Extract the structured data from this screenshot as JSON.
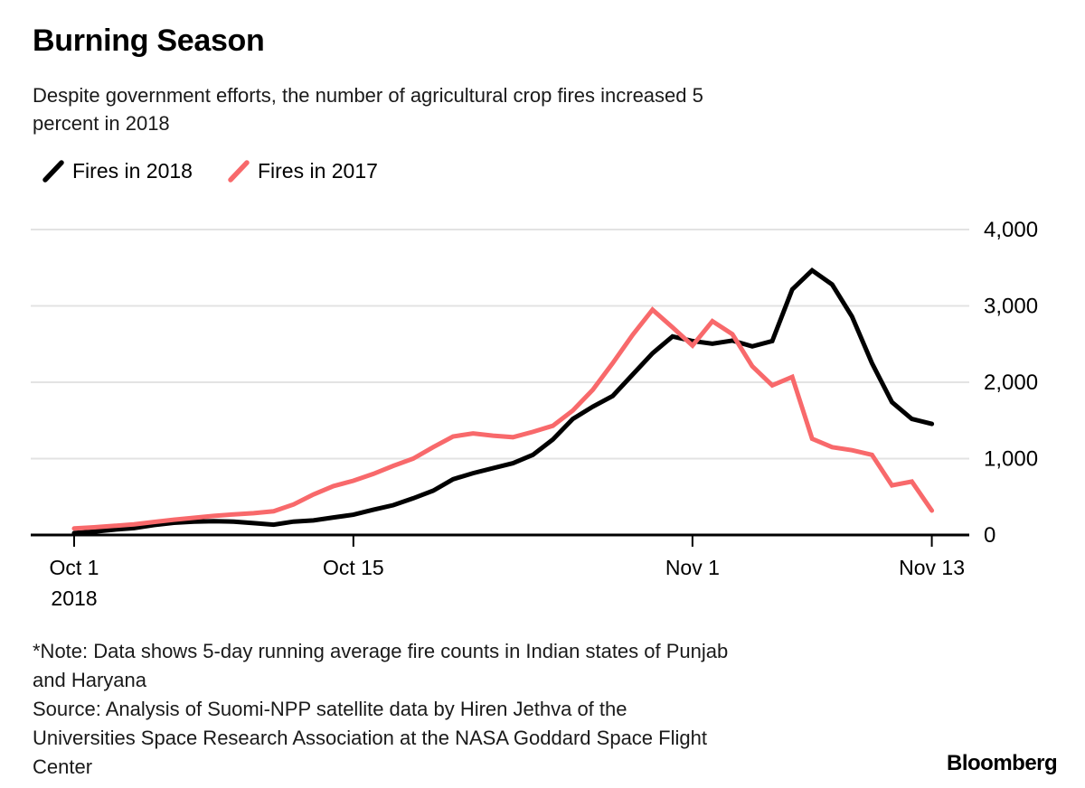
{
  "header": {
    "title": "Burning Season",
    "subtitle_lines": [
      "Despite government efforts, the number of agricultural crop fires increased 5",
      "percent in 2018"
    ]
  },
  "legend": [
    {
      "label": "Fires in 2018",
      "color": "#000000"
    },
    {
      "label": "Fires in 2017",
      "color": "#f8696b"
    }
  ],
  "chart_data": {
    "type": "line",
    "title": "Burning Season",
    "x_unit": "day index from Oct 1 (dates Oct 1 2018 - Nov 13 2018)",
    "ylim": [
      0,
      4000
    ],
    "grid": true,
    "grid_color": "#e3e3e3",
    "axis_color": "#000000",
    "legend_position": "top-left",
    "y_ticks": [
      4000,
      3000,
      2000,
      1000,
      0
    ],
    "y_tick_labels": [
      "4,000",
      "3,000",
      "2,000",
      "1,000",
      "0"
    ],
    "x_ticks": [
      {
        "day": 0,
        "label": "Oct 1",
        "sublabel": "2018"
      },
      {
        "day": 14,
        "label": "Oct 15"
      },
      {
        "day": 31,
        "label": "Nov 1"
      },
      {
        "day": 43,
        "label": "Nov 13"
      }
    ],
    "series": [
      {
        "name": "Fires in 2018",
        "color": "#000000",
        "values": [
          25,
          45,
          70,
          90,
          130,
          160,
          175,
          180,
          175,
          155,
          135,
          175,
          190,
          230,
          265,
          330,
          390,
          480,
          580,
          730,
          810,
          875,
          940,
          1050,
          1250,
          1520,
          1680,
          1820,
          2100,
          2380,
          2600,
          2540,
          2505,
          2545,
          2470,
          2540,
          3215,
          3465,
          3280,
          2860,
          2250,
          1740,
          1520,
          1455
        ]
      },
      {
        "name": "Fires in 2017",
        "color": "#f8696b",
        "values": [
          85,
          100,
          120,
          140,
          170,
          200,
          225,
          250,
          270,
          285,
          310,
          400,
          530,
          640,
          710,
          800,
          905,
          1000,
          1150,
          1290,
          1330,
          1300,
          1280,
          1350,
          1430,
          1630,
          1900,
          2250,
          2620,
          2950,
          2720,
          2480,
          2800,
          2630,
          2210,
          1960,
          2070,
          1260,
          1150,
          1110,
          1050,
          650,
          700,
          320
        ]
      }
    ]
  },
  "footnote_lines": [
    "*Note: Data shows 5-day running average fire counts in Indian states of Punjab",
    "and Haryana",
    "Source: Analysis of Suomi-NPP satellite data by Hiren Jethva of the",
    "Universities Space Research Association at the NASA Goddard Space Flight",
    "Center"
  ],
  "branding": {
    "logo": "Bloomberg"
  }
}
